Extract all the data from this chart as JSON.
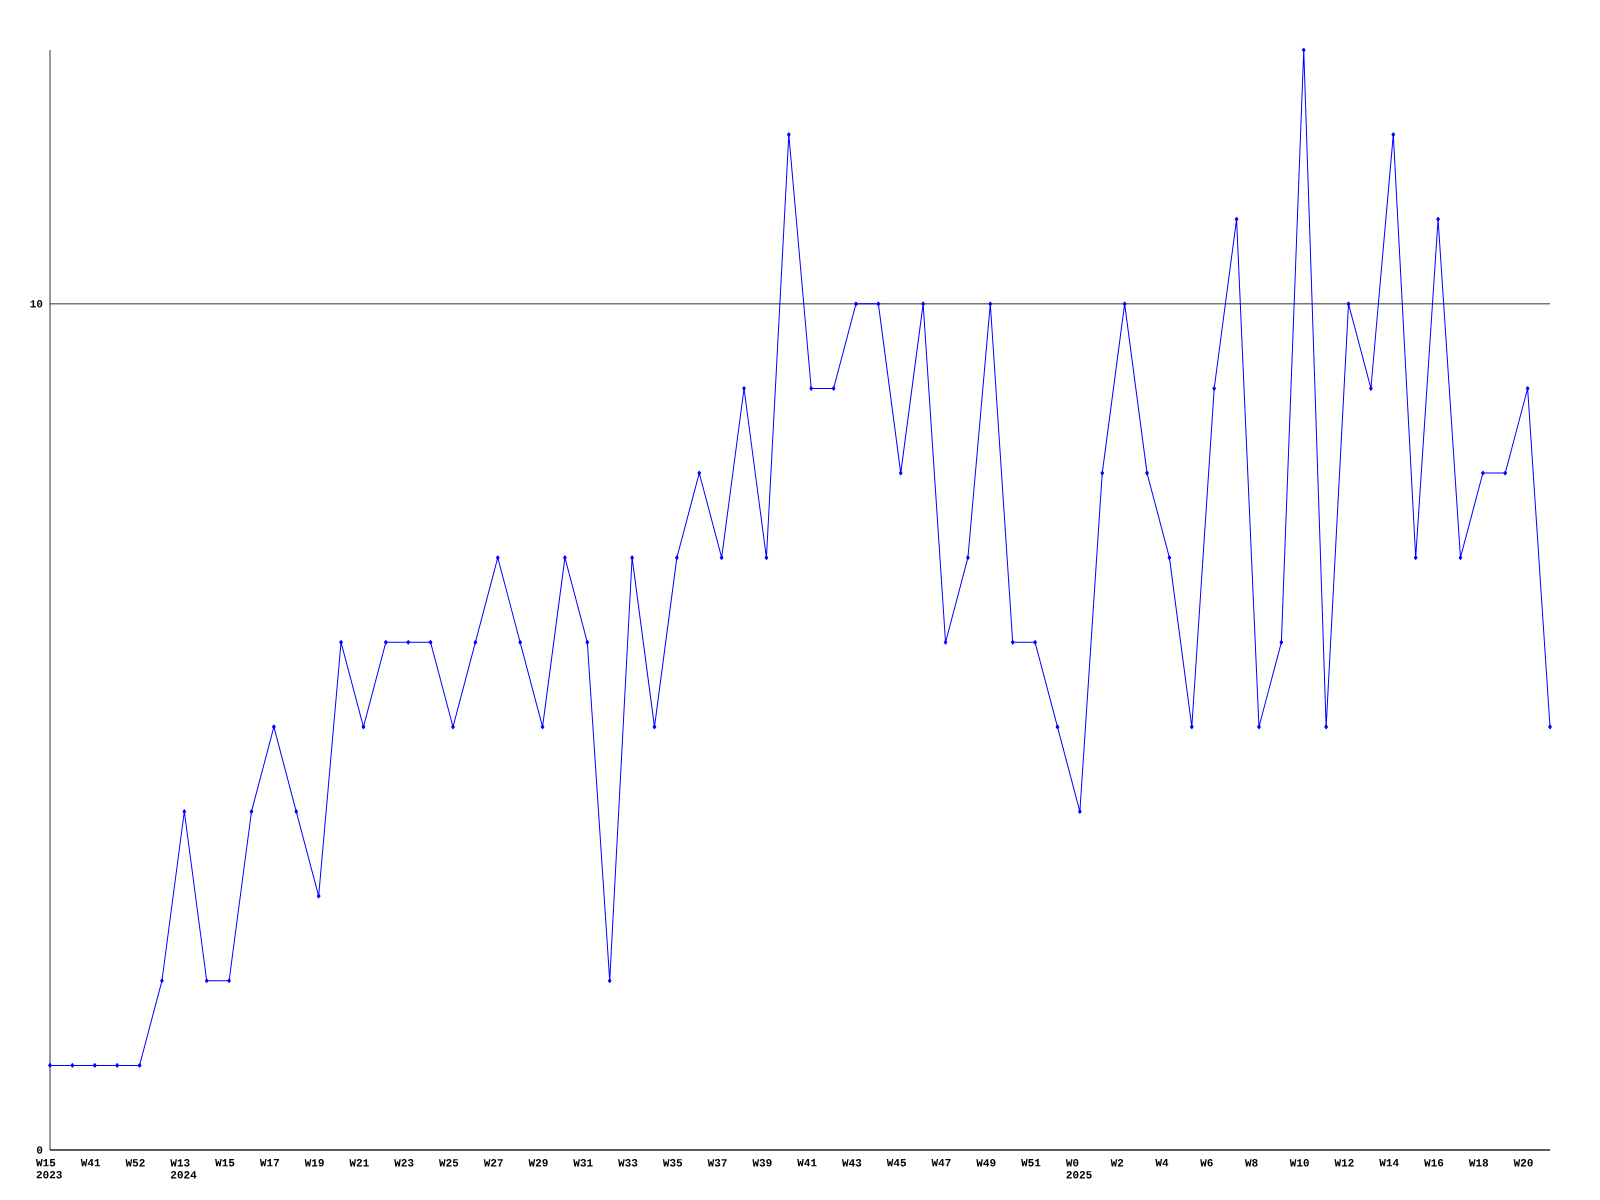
{
  "chart_data": {
    "type": "line",
    "categories": [
      "W15 2023",
      null,
      "W41",
      null,
      "W52",
      null,
      "W13 2024",
      null,
      "W15",
      null,
      "W17",
      null,
      "W19",
      null,
      "W21",
      null,
      "W23",
      null,
      "W25",
      null,
      "W27",
      null,
      "W29",
      null,
      "W31",
      null,
      "W33",
      null,
      "W35",
      null,
      "W37",
      null,
      "W39",
      null,
      "W41",
      null,
      "W43",
      null,
      "W45",
      null,
      "W47",
      null,
      "W49",
      null,
      "W51",
      null,
      "W0 2025",
      null,
      "W2",
      null,
      "W4",
      null,
      "W6",
      null,
      "W8",
      null,
      "W10",
      null,
      "W12",
      null,
      "W14",
      null,
      "W16",
      null,
      "W18",
      null,
      "W20",
      null
    ],
    "values": [
      1,
      1,
      1,
      1,
      1,
      2,
      4,
      2,
      2,
      4,
      5,
      4,
      3,
      6,
      5,
      6,
      6,
      6,
      5,
      6,
      7,
      6,
      5,
      7,
      6,
      2,
      7,
      5,
      7,
      8,
      7,
      9,
      7,
      12,
      9,
      9,
      10,
      10,
      8,
      10,
      6,
      7,
      10,
      6,
      6,
      5,
      4,
      8,
      10,
      8,
      7,
      5,
      9,
      11,
      5,
      6,
      13,
      5,
      10,
      9,
      12,
      7,
      11,
      7,
      8,
      8,
      9,
      5
    ],
    "color": "#0000ff",
    "ylim": [
      0,
      13
    ],
    "yticks": [
      0,
      10
    ],
    "grid": "y",
    "marker": "diamond"
  }
}
